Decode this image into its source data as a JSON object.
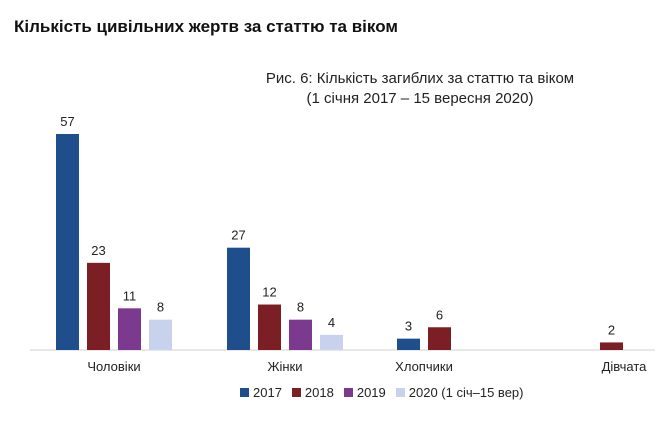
{
  "page": {
    "heading": "Кількість цивільних жертв за статтю та віком"
  },
  "chart_data": {
    "type": "bar",
    "title_line1": "Рис. 6: Кількість загиблих за статтю та віком",
    "title_line2": "(1 січня 2017 – 15 вересня 2020)",
    "categories": [
      "Чоловіки",
      "Жінки",
      "Хлопчики",
      "Дівчата"
    ],
    "ylim": [
      0,
      57
    ],
    "grid": false,
    "legend_position": "bottom",
    "series": [
      {
        "name": "2017",
        "color": "#1f4e8c",
        "values": [
          57,
          27,
          3,
          null
        ]
      },
      {
        "name": "2018",
        "color": "#7b1f24",
        "values": [
          23,
          12,
          6,
          2
        ]
      },
      {
        "name": "2019",
        "color": "#7b3a8e",
        "values": [
          11,
          8,
          null,
          null
        ]
      },
      {
        "name": "2020 (1 січ–15 вер)",
        "color": "#c9d2ec",
        "values": [
          8,
          4,
          null,
          null
        ]
      }
    ]
  }
}
